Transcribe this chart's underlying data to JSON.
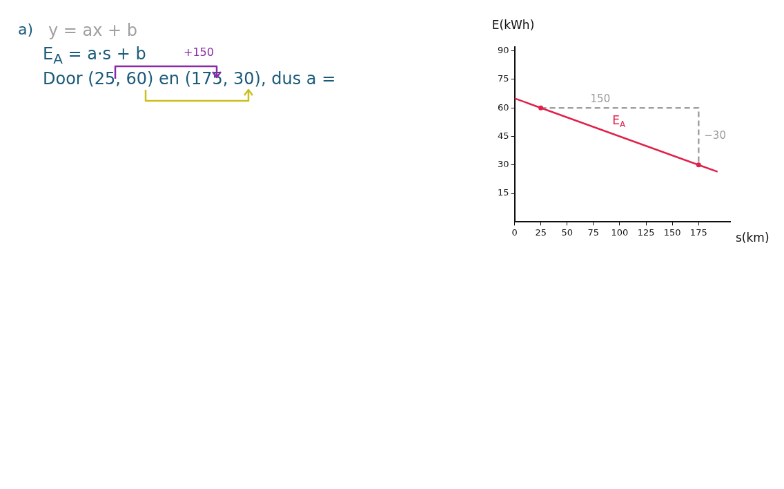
{
  "chart_data": {
    "type": "line",
    "xlabel": "s(km)",
    "ylabel": "E(kWh)",
    "xlim": [
      0,
      205
    ],
    "ylim": [
      0,
      92
    ],
    "xticks": [
      0,
      25,
      50,
      75,
      100,
      125,
      150,
      175
    ],
    "yticks": [
      15,
      30,
      45,
      60,
      75,
      90
    ],
    "grid": false,
    "legend": false,
    "series": [
      {
        "name": "E$_{A}$",
        "color": "#e0204a",
        "x": [
          0,
          193
        ],
        "values": [
          65,
          26.4
        ],
        "marker": "none"
      },
      {
        "type": "scatter",
        "color": "#e0204a",
        "x": [
          25,
          175
        ],
        "values": [
          60,
          30
        ],
        "marker": "circle"
      },
      {
        "color": "#a0a0a0",
        "line_style": "dashed",
        "x": [
          25,
          175,
          175
        ],
        "values": [
          60,
          60,
          30
        ],
        "marker": "none"
      }
    ],
    "annotations": [
      "a)",
      "y = ax + b",
      "E$_{A}$ = a·s + b",
      "Door (25, 60) en (175, 30), dus a =",
      "+150",
      {
        "text": "150",
        "x": 75,
        "y": 60
      },
      {
        "text": "−30",
        "x": 175,
        "y": 45
      }
    ]
  }
}
